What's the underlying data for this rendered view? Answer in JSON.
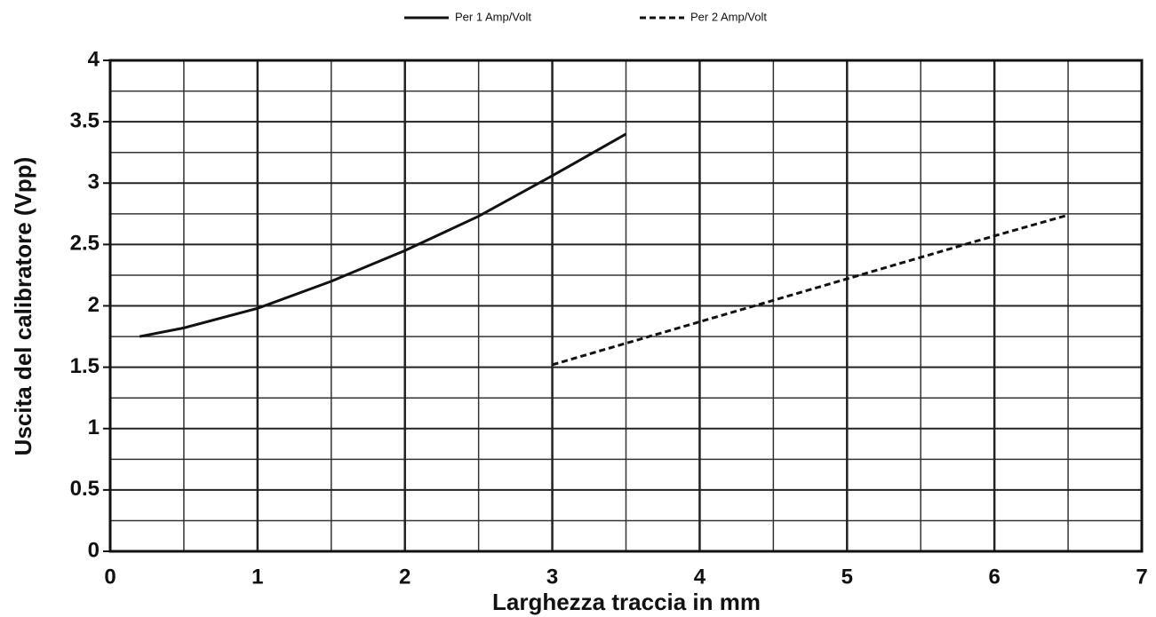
{
  "chart_data": {
    "type": "line",
    "x_label": "Larghezza traccia in mm",
    "y_label": "Uscita del calibratore (Vpp)",
    "series": [
      {
        "name": "Per 1 Amp/Volt",
        "color": "#111111",
        "dash": false,
        "x": [
          0.2,
          0.5,
          1,
          1.5,
          2,
          2.5,
          3,
          3.5
        ],
        "values": [
          1.75,
          1.82,
          1.98,
          2.2,
          2.45,
          2.73,
          3.06,
          3.4
        ]
      },
      {
        "name": "Per 2 Amp/Volt",
        "color": "#111111",
        "dash": true,
        "x": [
          3,
          4,
          5,
          6,
          6.5
        ],
        "values": [
          1.52,
          1.87,
          2.22,
          2.57,
          2.74
        ]
      }
    ],
    "xlim": [
      0,
      7
    ],
    "xticks": [
      0,
      1,
      2,
      3,
      4,
      5,
      6,
      7
    ],
    "x_minor_ticks": [
      0.5,
      1.5,
      2.5,
      3.5,
      4.5,
      5.5,
      6.5
    ],
    "ylim": [
      0,
      4
    ],
    "yticks": [
      0,
      0.5,
      1,
      1.5,
      2,
      2.5,
      3,
      3.5,
      4
    ],
    "y_minor_ticks": [
      0.25,
      0.75,
      1.25,
      1.75,
      2.25,
      2.75,
      3.25,
      3.75
    ],
    "grid": true
  }
}
